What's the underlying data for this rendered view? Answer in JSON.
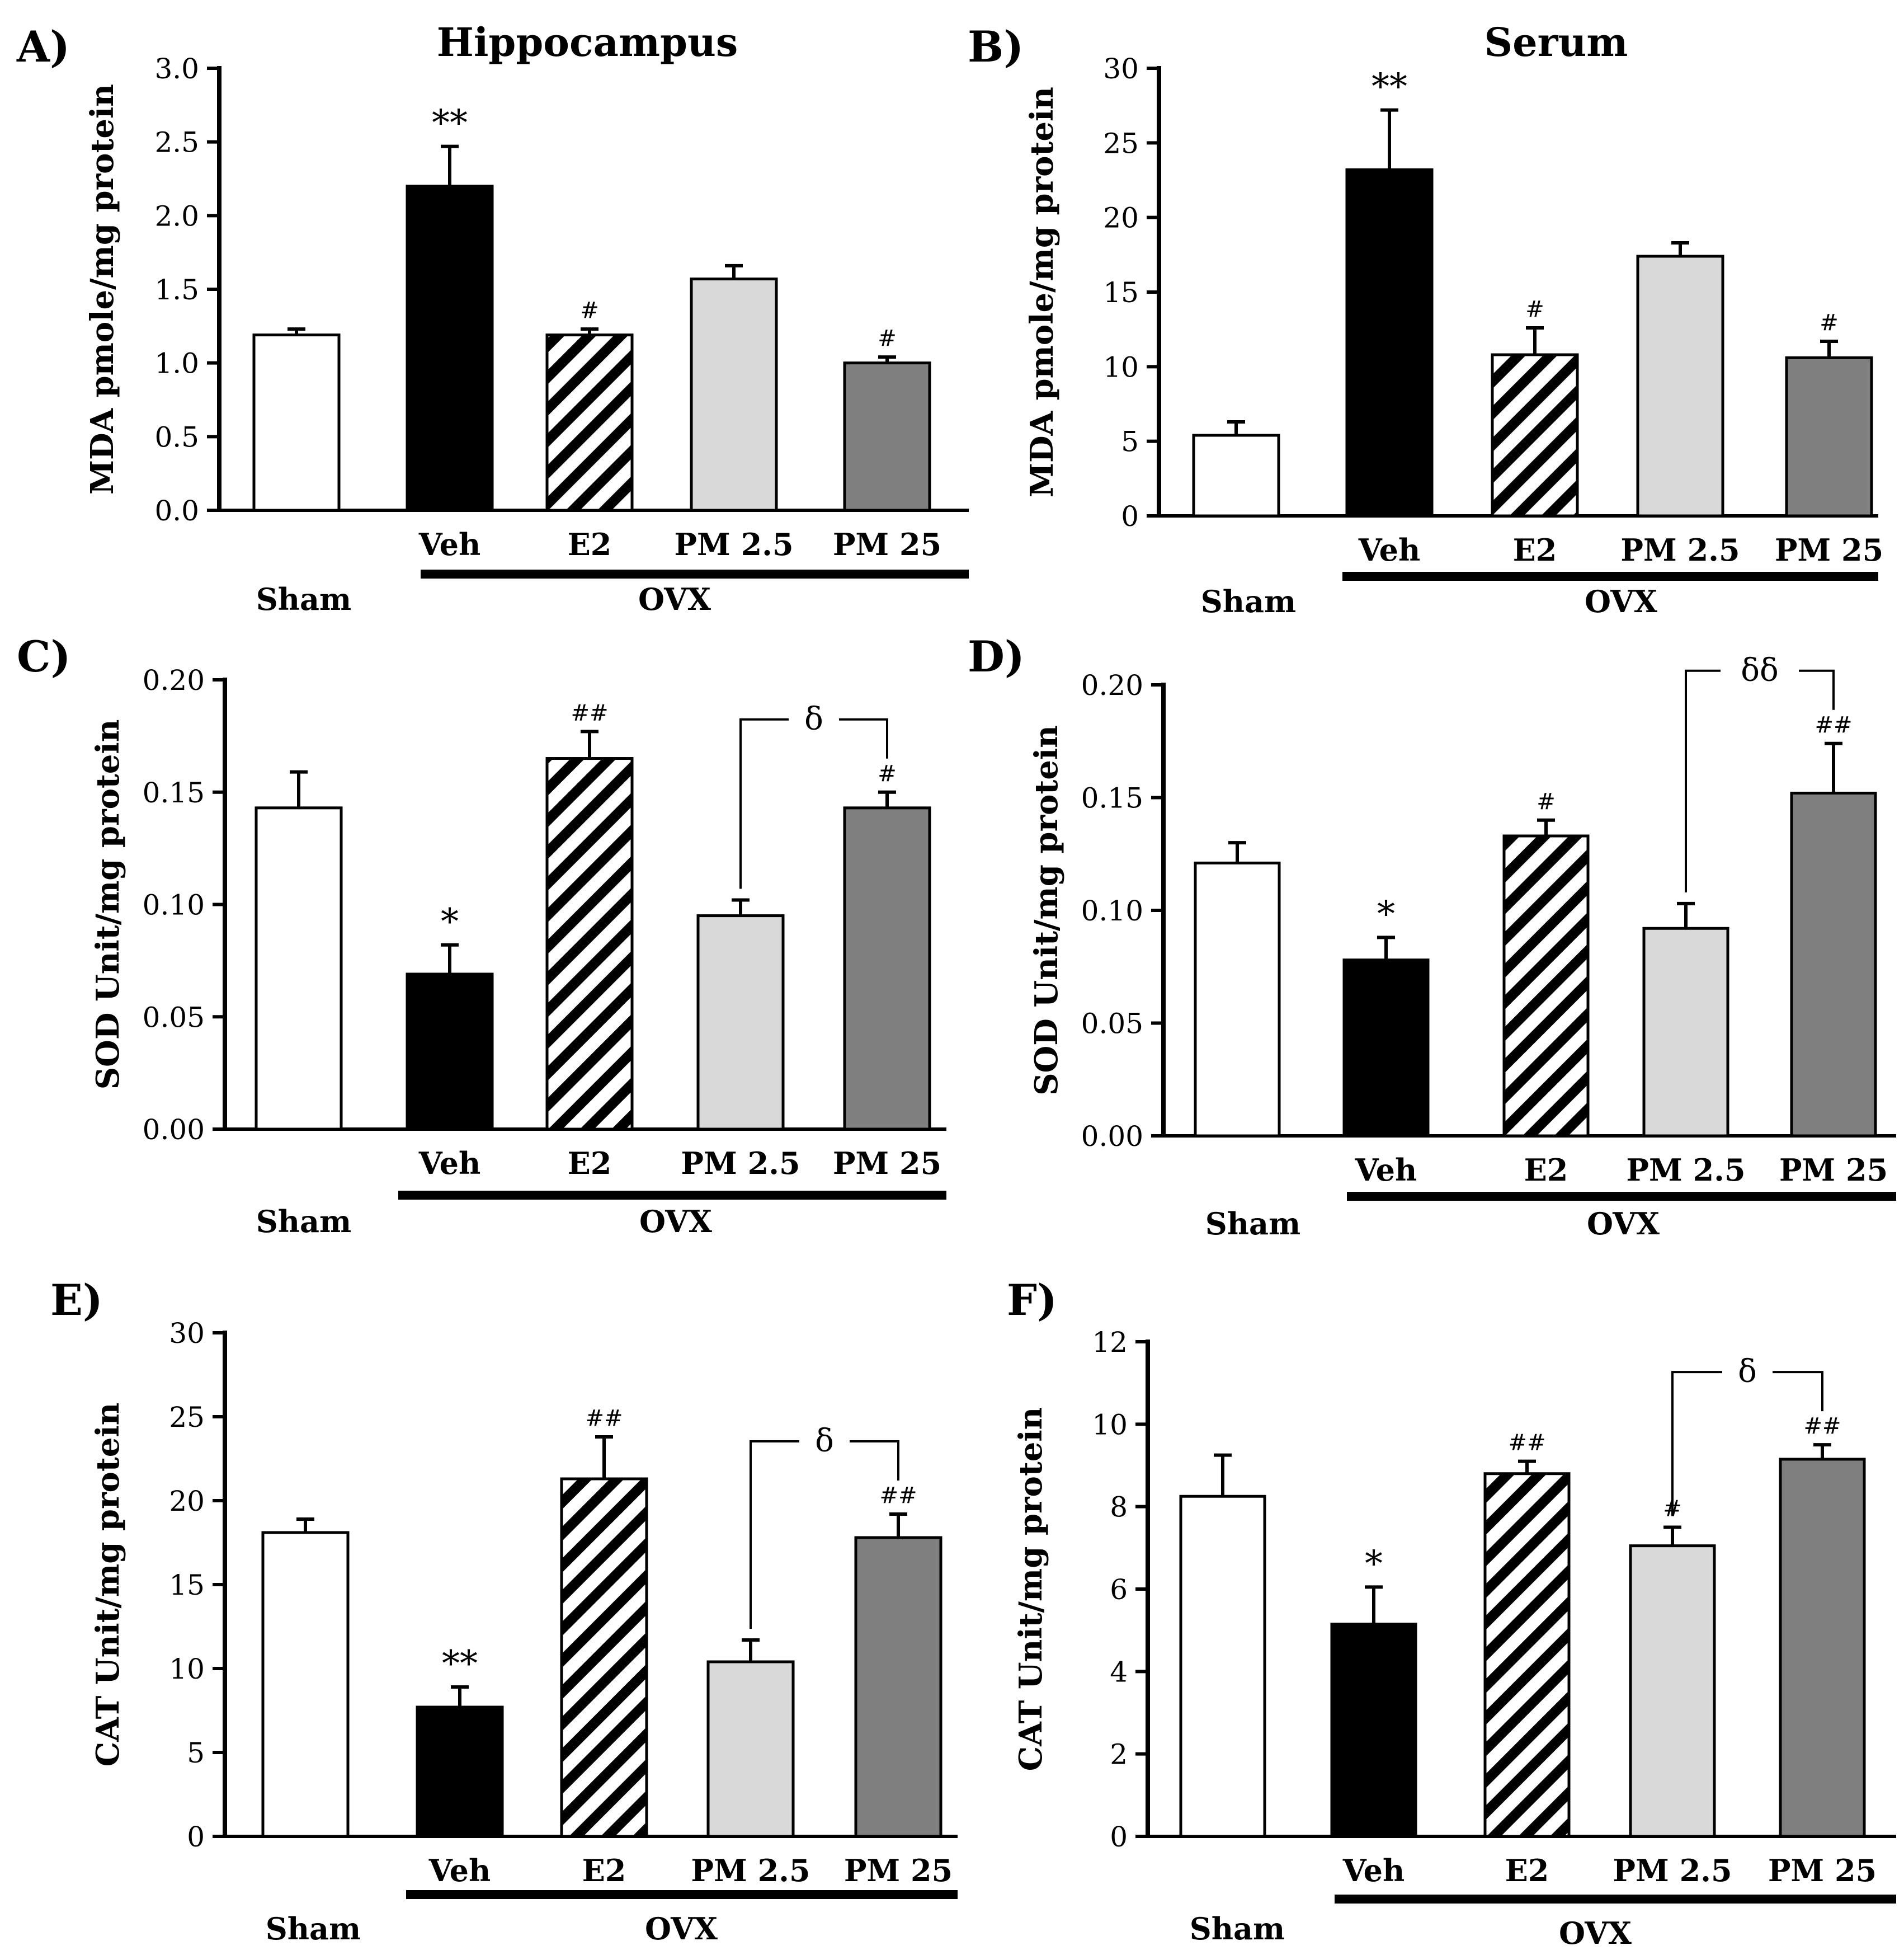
{
  "figure": {
    "groups": [
      "Sham",
      "Veh",
      "E2",
      "PM 2.5",
      "PM 25"
    ],
    "ovx_label": "OVX",
    "fills": {
      "Sham": "#ffffff",
      "Veh": "#000000",
      "E2": "hatch",
      "PM 2.5": "#d9d9d9",
      "PM 25": "#7f7f7f"
    }
  },
  "chart_data": [
    {
      "panel": "A)",
      "type": "bar",
      "title": "Hippocampus",
      "ylabel": "MDA  pmole/mg protein",
      "ylim": [
        0,
        3.0
      ],
      "yticks": [
        "0.0",
        "0.5",
        "1.0",
        "1.5",
        "2.0",
        "2.5",
        "3.0"
      ],
      "categories": [
        "Sham",
        "Veh",
        "E2",
        "PM 2.5",
        "PM 25"
      ],
      "values": [
        1.19,
        2.2,
        1.19,
        1.57,
        1.0
      ],
      "errors": [
        0.04,
        0.27,
        0.04,
        0.09,
        0.04
      ],
      "annotations": [
        "",
        "**",
        "#",
        "",
        "#"
      ],
      "brackets": []
    },
    {
      "panel": "B)",
      "type": "bar",
      "title": "Serum",
      "ylabel": "MDA pmole/mg protein",
      "ylim": [
        0,
        30
      ],
      "yticks": [
        "0",
        "5",
        "10",
        "15",
        "20",
        "25",
        "30"
      ],
      "categories": [
        "Sham",
        "Veh",
        "E2",
        "PM 2.5",
        "PM 25"
      ],
      "values": [
        5.4,
        23.2,
        10.8,
        17.4,
        10.6
      ],
      "errors": [
        0.9,
        4.0,
        1.8,
        0.9,
        1.1
      ],
      "annotations": [
        "",
        "**",
        "#",
        "",
        "#"
      ],
      "brackets": []
    },
    {
      "panel": "C)",
      "type": "bar",
      "title": "",
      "ylabel": "SOD Unit/mg protein",
      "ylim": [
        0,
        0.2
      ],
      "yticks": [
        "0.00",
        "0.05",
        "0.10",
        "0.15",
        "0.20"
      ],
      "categories": [
        "Sham",
        "Veh",
        "E2",
        "PM 2.5",
        "PM 25"
      ],
      "values": [
        0.143,
        0.069,
        0.165,
        0.095,
        0.143
      ],
      "errors": [
        0.016,
        0.013,
        0.012,
        0.007,
        0.007
      ],
      "annotations": [
        "",
        "*",
        "##",
        "",
        "#"
      ],
      "brackets": [
        {
          "from": 3,
          "to": 4,
          "label": "δ"
        }
      ]
    },
    {
      "panel": "D)",
      "type": "bar",
      "title": "",
      "ylabel": "SOD Unit/mg protein",
      "ylim": [
        0,
        0.2
      ],
      "yticks": [
        "0.00",
        "0.05",
        "0.10",
        "0.15",
        "0.20"
      ],
      "categories": [
        "Sham",
        "Veh",
        "E2",
        "PM 2.5",
        "PM 25"
      ],
      "values": [
        0.121,
        0.078,
        0.133,
        0.092,
        0.152
      ],
      "errors": [
        0.009,
        0.01,
        0.007,
        0.011,
        0.022
      ],
      "annotations": [
        "",
        "*",
        "#",
        "",
        "##"
      ],
      "brackets": [
        {
          "from": 3,
          "to": 4,
          "label": "δδ"
        }
      ]
    },
    {
      "panel": "E)",
      "type": "bar",
      "title": "",
      "ylabel": "CAT Unit/mg  protein",
      "ylim": [
        0,
        30
      ],
      "yticks": [
        "0",
        "5",
        "10",
        "15",
        "20",
        "25",
        "30"
      ],
      "categories": [
        "Sham",
        "Veh",
        "E2",
        "PM 2.5",
        "PM 25"
      ],
      "values": [
        18.1,
        7.7,
        21.3,
        10.4,
        17.8
      ],
      "errors": [
        0.8,
        1.2,
        2.5,
        1.3,
        1.4
      ],
      "annotations": [
        "",
        "**",
        "##",
        "",
        "##"
      ],
      "brackets": [
        {
          "from": 3,
          "to": 4,
          "label": "δ"
        }
      ]
    },
    {
      "panel": "F)",
      "type": "bar",
      "title": "",
      "ylabel": "CAT Unit/mg  protein",
      "ylim": [
        0,
        12
      ],
      "yticks": [
        "0",
        "2",
        "4",
        "6",
        "8",
        "10",
        "12"
      ],
      "categories": [
        "Sham",
        "Veh",
        "E2",
        "PM 2.5",
        "PM 25"
      ],
      "values": [
        8.25,
        5.15,
        8.8,
        7.05,
        9.15
      ],
      "errors": [
        1.0,
        0.9,
        0.3,
        0.45,
        0.35
      ],
      "annotations": [
        "",
        "*",
        "##",
        "#",
        "##"
      ],
      "brackets": [
        {
          "from": 3,
          "to": 4,
          "label": "δ"
        }
      ]
    }
  ]
}
